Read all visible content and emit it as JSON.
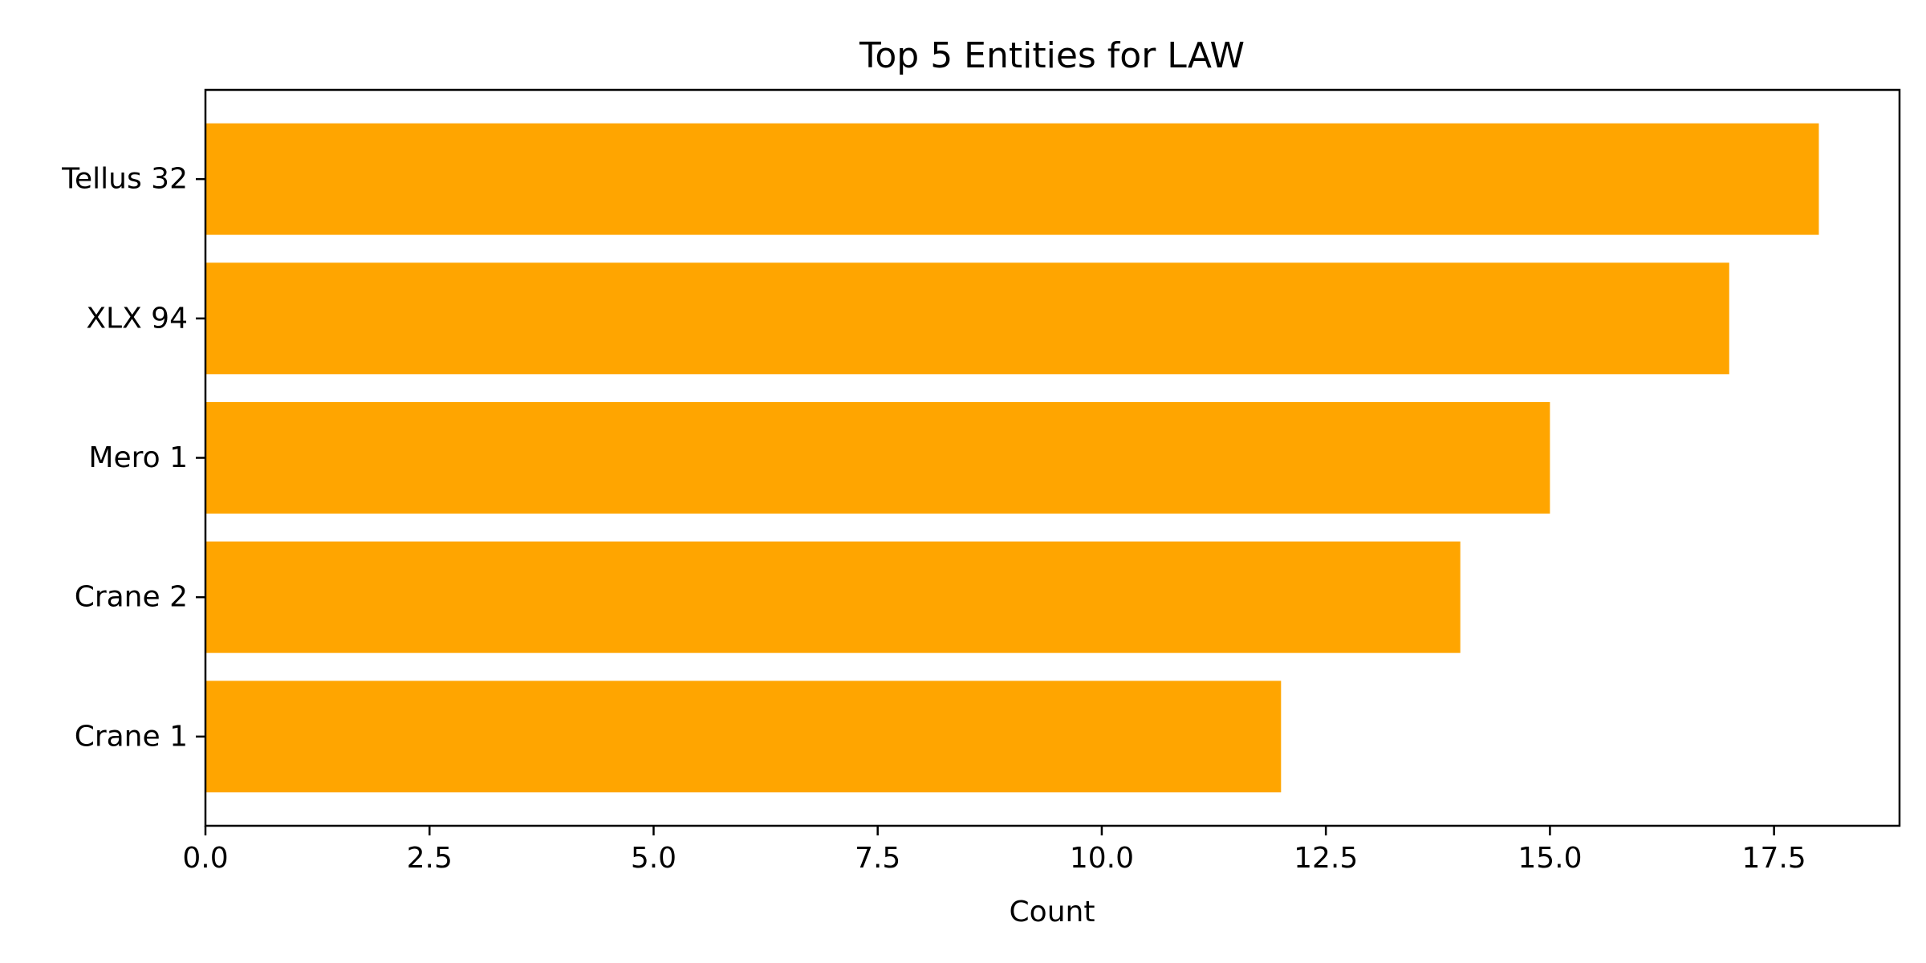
{
  "chart_data": {
    "type": "bar",
    "orientation": "horizontal",
    "title": "Top 5 Entities for LAW",
    "xlabel": "Count",
    "ylabel": "",
    "categories": [
      "Tellus 32",
      "XLX 94",
      "Mero 1",
      "Crane 2",
      "Crane 1"
    ],
    "values": [
      18,
      17,
      15,
      14,
      12
    ],
    "xlim": [
      0,
      18.9
    ],
    "xticks": [
      0.0,
      2.5,
      5.0,
      7.5,
      10.0,
      12.5,
      15.0,
      17.5
    ],
    "xtick_labels": [
      "0.0",
      "2.5",
      "5.0",
      "7.5",
      "10.0",
      "12.5",
      "15.0",
      "17.5"
    ],
    "bar_color": "#ffa500",
    "grid": false,
    "legend": "none"
  }
}
